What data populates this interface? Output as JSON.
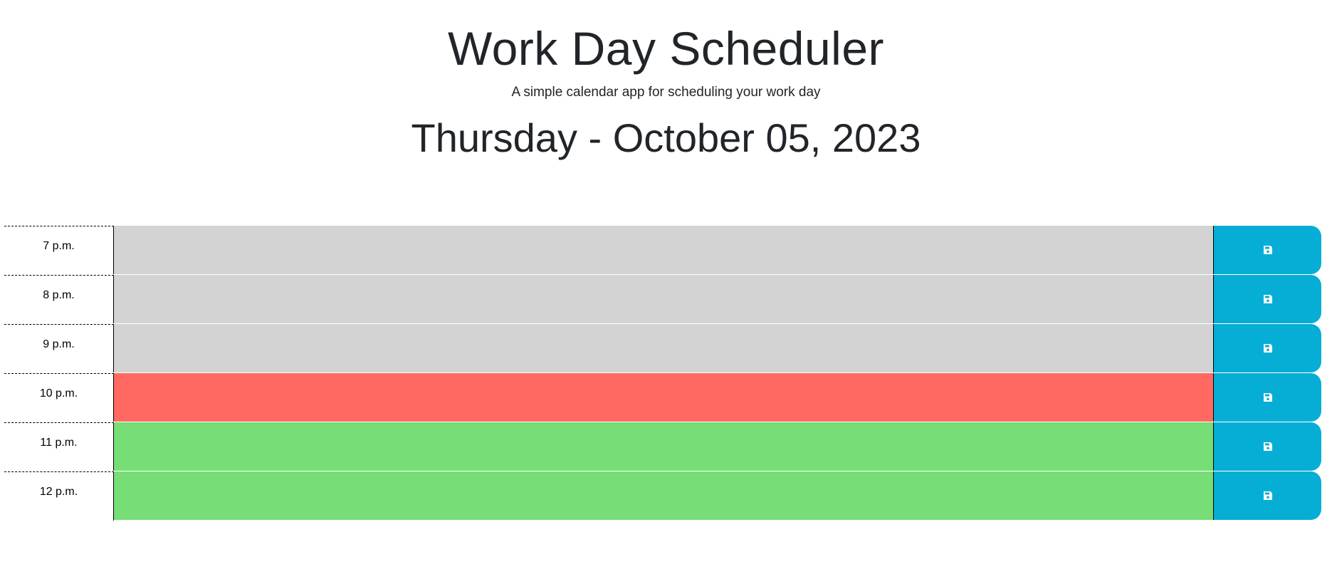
{
  "header": {
    "title": "Work Day Scheduler",
    "subtitle": "A simple calendar app for scheduling your work day",
    "current_day": "Thursday - October 05, 2023"
  },
  "colors": {
    "past": "#d3d3d3",
    "present": "#ff6961",
    "future": "#77dd77",
    "save_button": "#06aed5"
  },
  "time_blocks": [
    {
      "hour": "7 p.m.",
      "state": "past",
      "text": "",
      "save_icon": "floppy-disk-icon"
    },
    {
      "hour": "8 p.m.",
      "state": "past",
      "text": "",
      "save_icon": "floppy-disk-icon"
    },
    {
      "hour": "9 p.m.",
      "state": "past",
      "text": "",
      "save_icon": "floppy-disk-icon"
    },
    {
      "hour": "10 p.m.",
      "state": "present",
      "text": "",
      "save_icon": "floppy-disk-icon"
    },
    {
      "hour": "11 p.m.",
      "state": "future",
      "text": "",
      "save_icon": "floppy-disk-icon"
    },
    {
      "hour": "12 p.m.",
      "state": "future",
      "text": "",
      "save_icon": "floppy-disk-icon"
    }
  ]
}
